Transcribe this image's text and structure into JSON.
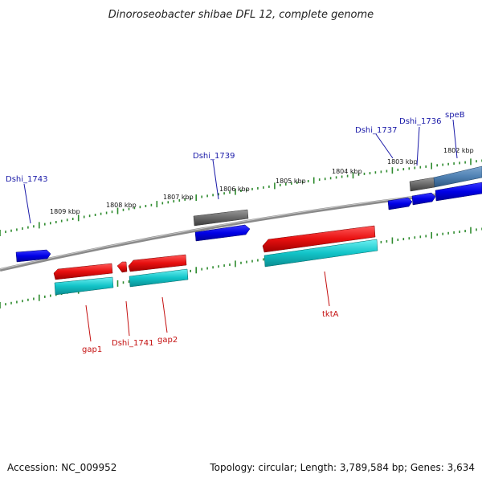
{
  "title": "Dinoroseobacter shibae DFL 12, complete genome",
  "footer": {
    "accession": "Accession: NC_009952",
    "summary": "Topology: circular; Length: 3,789,584 bp; Genes: 3,634"
  },
  "scale_labels": [
    "1809 kbp",
    "1808 kbp",
    "1807 kbp",
    "1806 kbp",
    "1805 kbp",
    "1804 kbp",
    "1803 kbp",
    "1802 kbp"
  ],
  "gene_labels": {
    "dshi_1743": "Dshi_1743",
    "dshi_1739": "Dshi_1739",
    "dshi_1737": "Dshi_1737",
    "dshi_1736": "Dshi_1736",
    "speB": "speB",
    "gap1": "gap1",
    "dshi_1741": "Dshi_1741",
    "gap2": "gap2",
    "tktA": "tktA"
  },
  "colors": {
    "backbone": "#8a8a8a",
    "tick": "#2e8b2e",
    "blue_feature": "#0a0ad6",
    "gray_feature": "#6a6a6a",
    "steel_feature": "#4f81b3",
    "red_feature": "#e01010",
    "cyan_feature": "#12c4c8",
    "label_blue": "#1a1aa8",
    "label_red": "#c41010"
  }
}
